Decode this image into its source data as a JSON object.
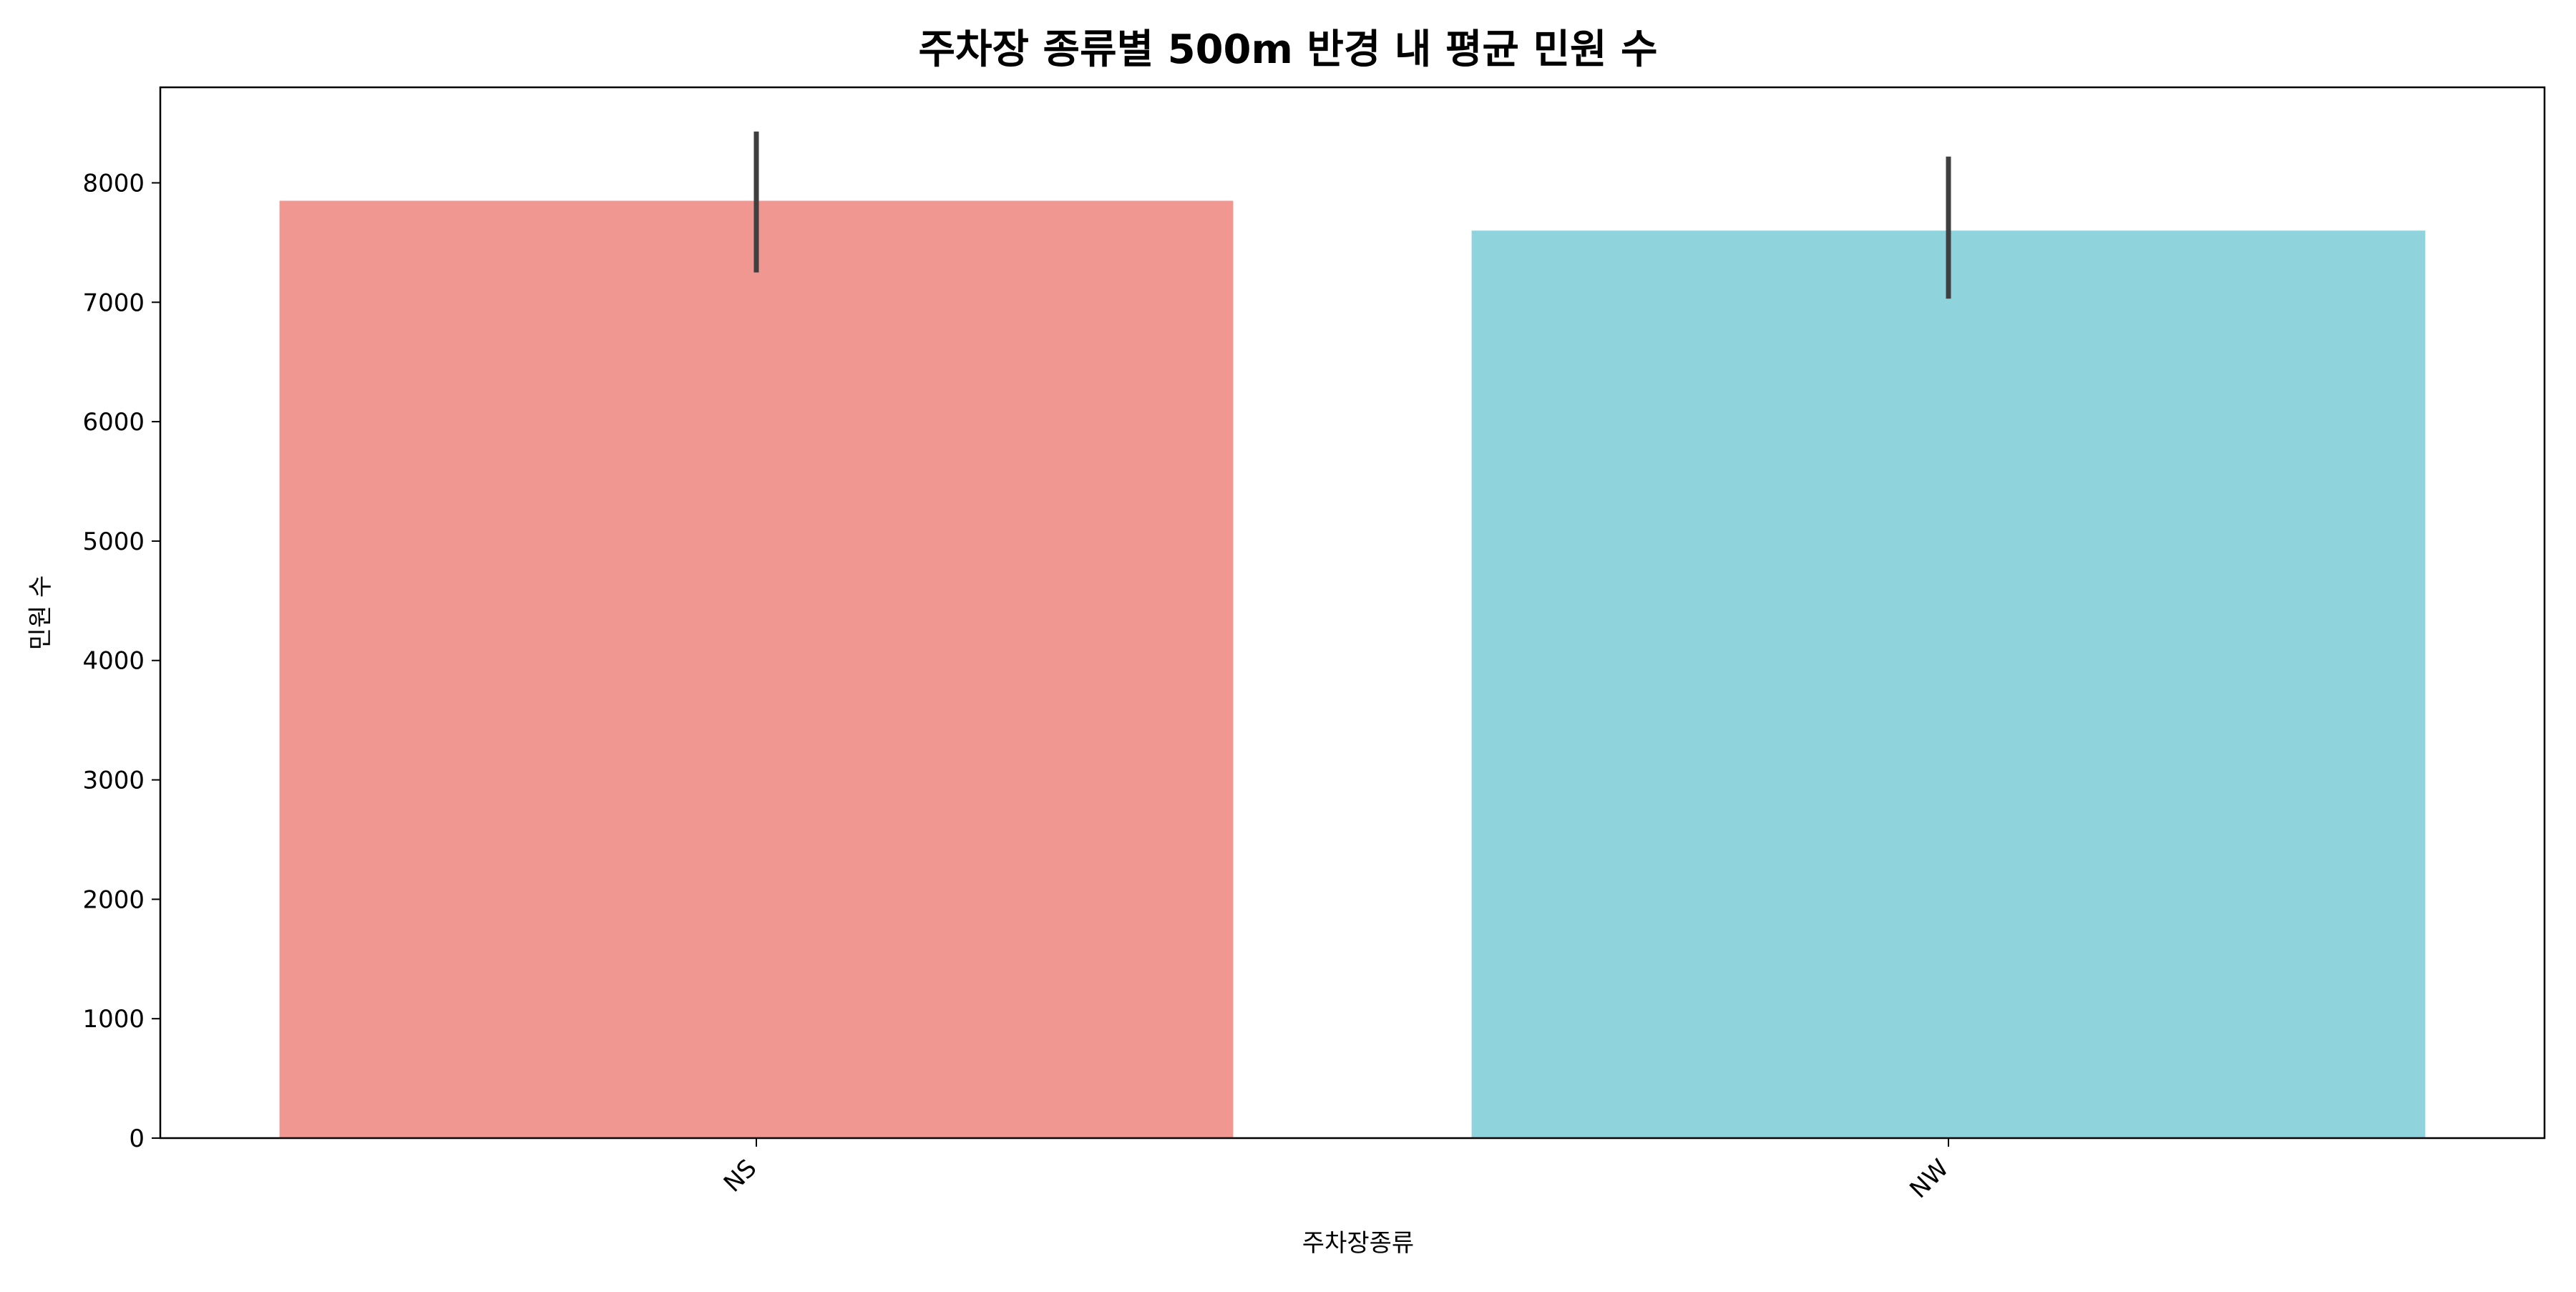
{
  "chart_data": {
    "type": "bar",
    "title": "주차장 종류별 500m 반경 내 평균 민원 수",
    "xlabel": "주차장종류",
    "ylabel": "민원 수",
    "categories": [
      "NS",
      "NW"
    ],
    "values": [
      7850,
      7600
    ],
    "error_bars": [
      {
        "low": 7250,
        "high": 8430
      },
      {
        "low": 7030,
        "high": 8220
      }
    ],
    "colors": [
      "#f09791",
      "#8fd4dc"
    ],
    "error_bar_color": "#3f3f3f",
    "ylim": [
      0,
      8800
    ],
    "yticks": [
      0,
      1000,
      2000,
      3000,
      4000,
      5000,
      6000,
      7000,
      8000
    ],
    "xtick_rotation": 45,
    "grid": false,
    "legend": "none"
  }
}
